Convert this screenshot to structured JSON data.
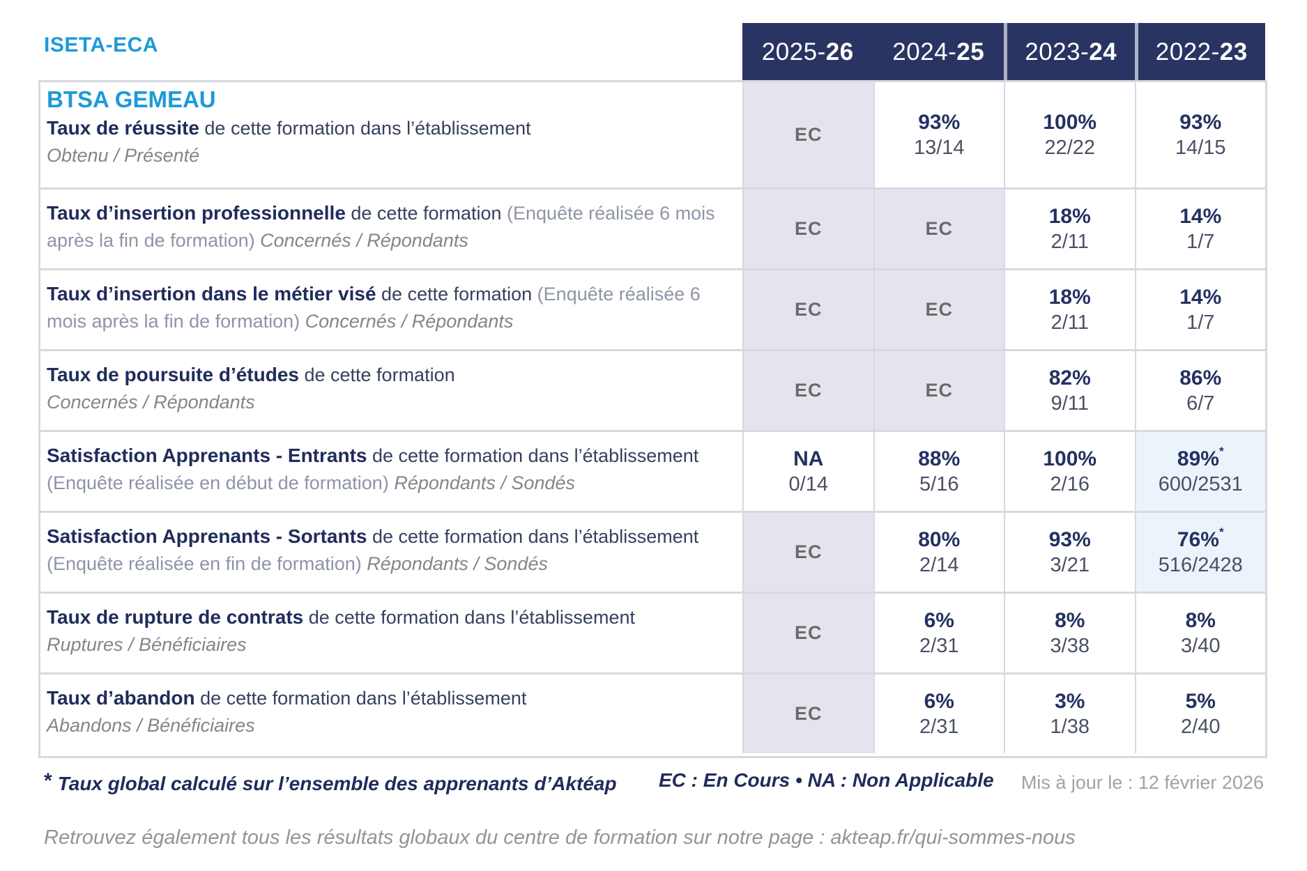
{
  "brand": "ISETA-ECA",
  "program": "BTSA GEMEAU",
  "years": [
    {
      "prefix": "2025-",
      "suffix": "26"
    },
    {
      "prefix": "2024-",
      "suffix": "25"
    },
    {
      "prefix": "2023-",
      "suffix": "24"
    },
    {
      "prefix": "2022-",
      "suffix": "23"
    }
  ],
  "rows": [
    {
      "label_bold": "Taux de réussite",
      "label_rest": " de cette formation dans l’établissement",
      "label_paren": "",
      "sub_inline": "",
      "sub_block": "Obtenu / Présenté",
      "cells": [
        {
          "kind": "ec",
          "text": "EC"
        },
        {
          "kind": "value",
          "pct": "93%",
          "frac": "13/14"
        },
        {
          "kind": "value",
          "pct": "100%",
          "frac": "22/22"
        },
        {
          "kind": "value",
          "pct": "93%",
          "frac": "14/15"
        }
      ]
    },
    {
      "label_bold": "Taux d’insertion professionnelle",
      "label_rest": " de cette formation",
      "label_paren": " (Enquête réalisée 6 mois après la fin de formation)",
      "sub_inline": " Concernés / Répondants",
      "sub_block": "",
      "cells": [
        {
          "kind": "ec",
          "text": "EC"
        },
        {
          "kind": "ec",
          "text": "EC"
        },
        {
          "kind": "value",
          "pct": "18%",
          "frac": "2/11"
        },
        {
          "kind": "value",
          "pct": "14%",
          "frac": "1/7"
        }
      ]
    },
    {
      "label_bold": "Taux d’insertion dans le métier visé",
      "label_rest": " de cette formation",
      "label_paren": " (Enquête réalisée 6 mois après la fin de formation)",
      "sub_inline": " Concernés / Répondants",
      "sub_block": "",
      "cells": [
        {
          "kind": "ec",
          "text": "EC"
        },
        {
          "kind": "ec",
          "text": "EC"
        },
        {
          "kind": "value",
          "pct": "18%",
          "frac": "2/11"
        },
        {
          "kind": "value",
          "pct": "14%",
          "frac": "1/7"
        }
      ]
    },
    {
      "label_bold": "Taux de poursuite d’études",
      "label_rest": " de cette formation",
      "label_paren": "",
      "sub_inline": "",
      "sub_block": "Concernés / Répondants",
      "cells": [
        {
          "kind": "ec",
          "text": "EC"
        },
        {
          "kind": "ec",
          "text": "EC"
        },
        {
          "kind": "value",
          "pct": "82%",
          "frac": "9/11"
        },
        {
          "kind": "value",
          "pct": "86%",
          "frac": "6/7"
        }
      ]
    },
    {
      "label_bold": "Satisfaction Apprenants - Entrants",
      "label_rest": " de cette formation dans l’établissement",
      "label_paren": " (Enquête réalisée en début de formation)",
      "sub_inline": " Répondants / Sondés",
      "sub_block": "",
      "cells": [
        {
          "kind": "value",
          "pct": "NA",
          "frac": "0/14"
        },
        {
          "kind": "value",
          "pct": "88%",
          "frac": "5/16"
        },
        {
          "kind": "value",
          "pct": "100%",
          "frac": "2/16"
        },
        {
          "kind": "value",
          "pct": "89%",
          "star": "*",
          "frac": "600/2531"
        }
      ]
    },
    {
      "label_bold": "Satisfaction Apprenants - Sortants",
      "label_rest": " de cette formation dans l’établissement",
      "label_paren": " (Enquête réalisée en fin de formation)",
      "sub_inline": " Répondants / Sondés",
      "sub_block": "",
      "cells": [
        {
          "kind": "ec",
          "text": "EC"
        },
        {
          "kind": "value",
          "pct": "80%",
          "frac": "2/14"
        },
        {
          "kind": "value",
          "pct": "93%",
          "frac": "3/21"
        },
        {
          "kind": "value",
          "pct": "76%",
          "star": "*",
          "frac": "516/2428"
        }
      ]
    },
    {
      "label_bold": "Taux de rupture de contrats",
      "label_rest": " de cette formation dans l’établissement",
      "label_paren": "",
      "sub_inline": "",
      "sub_block": "Ruptures / Bénéficiaires",
      "cells": [
        {
          "kind": "ec",
          "text": "EC"
        },
        {
          "kind": "value",
          "pct": "6%",
          "frac": "2/31"
        },
        {
          "kind": "value",
          "pct": "8%",
          "frac": "3/38"
        },
        {
          "kind": "value",
          "pct": "8%",
          "frac": "3/40"
        }
      ]
    },
    {
      "label_bold": "Taux d’abandon",
      "label_rest": " de cette formation dans l’établissement",
      "label_paren": "",
      "sub_inline": "",
      "sub_block": "Abandons / Bénéficiaires",
      "cells": [
        {
          "kind": "ec",
          "text": "EC"
        },
        {
          "kind": "value",
          "pct": "6%",
          "frac": "2/31"
        },
        {
          "kind": "value",
          "pct": "3%",
          "frac": "1/38"
        },
        {
          "kind": "value",
          "pct": "5%",
          "frac": "2/40"
        }
      ]
    }
  ],
  "footnote": {
    "star": "*",
    "text": "Taux global calculé sur l’ensemble des apprenants d’Aktéap",
    "legend": "EC : En Cours  •  NA : Non Applicable",
    "updated": "Mis à jour le : 12 février 2026"
  },
  "bottom_note": "Retrouvez également tous les résultats globaux du centre de formation sur notre page : akteap.fr/qui-sommes-nous",
  "colors": {
    "header_bg": "#2A3462",
    "accent_cyan": "#1C9AD8",
    "value_navy": "#243161",
    "ec_gray_bg": "#E5E4EE",
    "highlight_blue_bg": "#EBF4FA"
  }
}
